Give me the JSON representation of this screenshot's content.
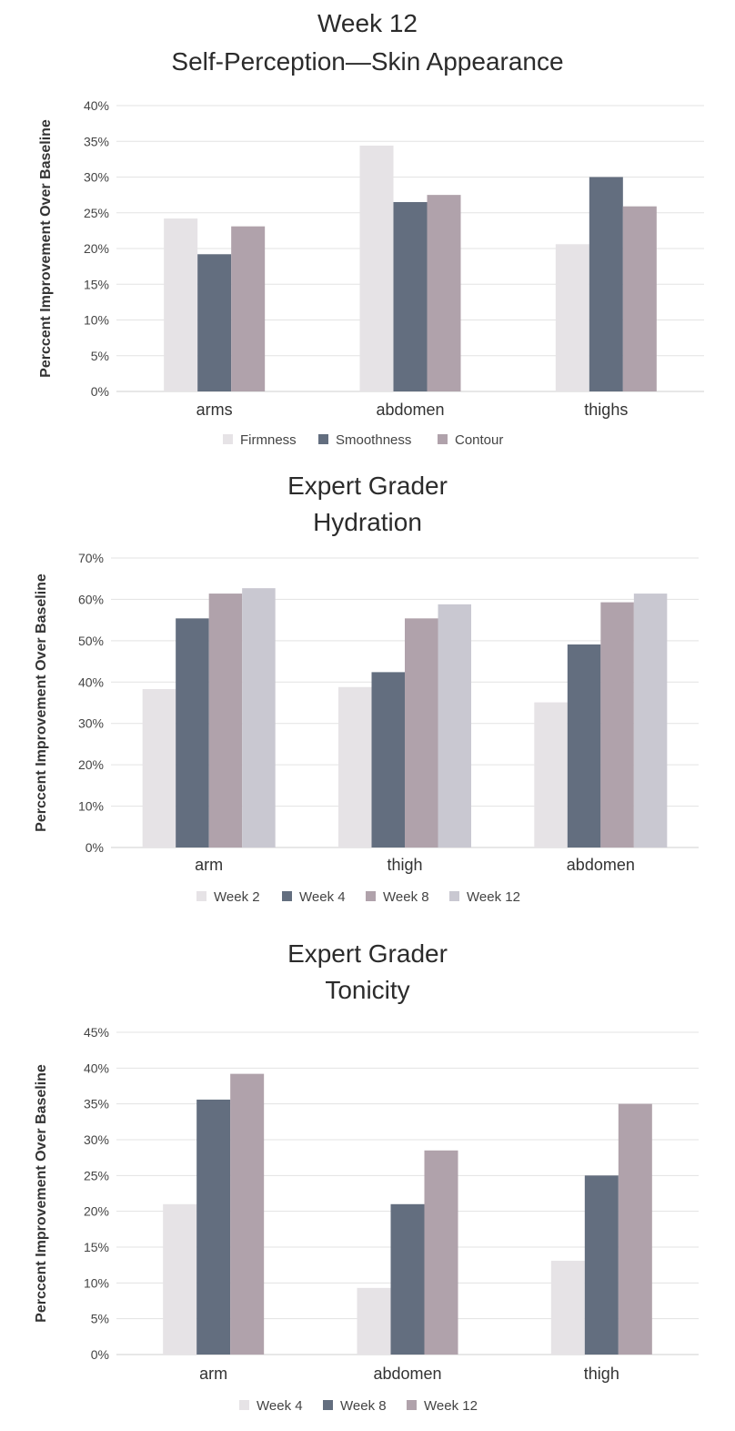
{
  "chart_data": [
    {
      "type": "bar",
      "title": "Week 12",
      "subtitle": "Self-Perception—Skin Appearance",
      "ylabel": "Percent Improvement Over Baseline",
      "ylabel_text": "Perccent Improvement Over Baseline",
      "categories": [
        "arms",
        "abdomen",
        "thighs"
      ],
      "series": [
        {
          "name": "Firmness",
          "values": [
            24.2,
            34.4,
            20.6
          ]
        },
        {
          "name": "Smoothness",
          "values": [
            19.2,
            26.5,
            30.0
          ]
        },
        {
          "name": "Contour",
          "values": [
            23.1,
            27.5,
            25.9
          ]
        }
      ],
      "ylim": [
        0,
        40
      ],
      "yticks": [
        "0%",
        "5%",
        "10%",
        "15%",
        "20%",
        "25%",
        "30%",
        "35%",
        "40%"
      ],
      "grid": true,
      "legend": "bottom"
    },
    {
      "type": "bar",
      "title": "Expert Grader",
      "subtitle": "Hydration",
      "ylabel_text": "Perccent Improvement Over Baseline",
      "categories": [
        "arm",
        "thigh",
        "abdomen"
      ],
      "series": [
        {
          "name": "Week 2",
          "values": [
            38.3,
            38.8,
            35.1
          ]
        },
        {
          "name": "Week 4",
          "values": [
            55.4,
            42.4,
            49.1
          ]
        },
        {
          "name": "Week 8",
          "values": [
            61.4,
            55.4,
            59.3
          ]
        },
        {
          "name": "Week 12",
          "values": [
            62.7,
            58.8,
            61.4
          ]
        }
      ],
      "ylim": [
        0,
        70
      ],
      "yticks": [
        "0%",
        "10%",
        "20%",
        "30%",
        "40%",
        "50%",
        "60%",
        "70%"
      ],
      "grid": true,
      "legend": "bottom"
    },
    {
      "type": "bar",
      "title": "Expert Grader",
      "subtitle": "Tonicity",
      "ylabel_text": "Perccent Improvement Over Baseline",
      "categories": [
        "arm",
        "abdomen",
        "thigh"
      ],
      "series": [
        {
          "name": "Week 4",
          "values": [
            21.0,
            9.3,
            13.1
          ]
        },
        {
          "name": "Week 8",
          "values": [
            35.6,
            21.0,
            25.0
          ]
        },
        {
          "name": "Week 12",
          "values": [
            39.2,
            28.5,
            35.0
          ]
        }
      ],
      "ylim": [
        0,
        45
      ],
      "yticks": [
        "0%",
        "5%",
        "10%",
        "15%",
        "20%",
        "25%",
        "30%",
        "35%",
        "40%",
        "45%"
      ],
      "grid": true,
      "legend": "bottom"
    }
  ],
  "colors": {
    "c3": [
      "#e6e3e6",
      "#636e7f",
      "#b0a2ab"
    ],
    "c4": [
      "#e6e3e6",
      "#636e7f",
      "#b0a2ab",
      "#c9c8d1"
    ],
    "grid": "#e3e3e3",
    "axis": "#cfcfcf"
  }
}
